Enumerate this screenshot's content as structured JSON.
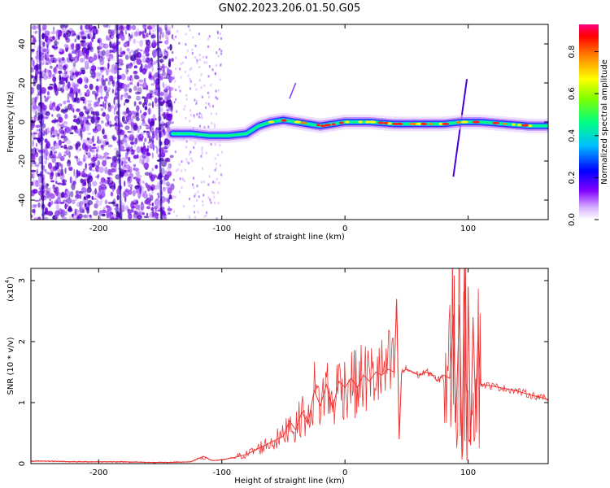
{
  "title": "GN02.2023.206.01.50.G05",
  "chart_data": [
    {
      "type": "heatmap",
      "xlabel": "Height of straight line (km)",
      "ylabel": "Frequency (Hz)",
      "xlim": [
        -255,
        165
      ],
      "ylim": [
        -50,
        50
      ],
      "xticks": [
        -200,
        -100,
        0,
        100
      ],
      "yticks": [
        -40,
        -20,
        0,
        20,
        40
      ],
      "ridge": {
        "x": [
          -140,
          -125,
          -110,
          -95,
          -80,
          -70,
          -60,
          -50,
          -40,
          -30,
          -20,
          -10,
          0,
          20,
          40,
          60,
          80,
          95,
          110,
          130,
          150,
          165
        ],
        "y": [
          -6,
          -6,
          -7,
          -7,
          -6,
          -2,
          0,
          1,
          0,
          -1,
          -2,
          -1,
          0,
          0,
          -1,
          -1,
          -1,
          0,
          0,
          -1,
          -2,
          -2
        ]
      },
      "colorbar": {
        "label": "Normalized spectral amplitude",
        "ticks": [
          "0.0",
          "0.2",
          "0.4",
          "0.6",
          "0.8"
        ],
        "colors": [
          "#ffffff",
          "#d9b3ff",
          "#8000ff",
          "#0000ff",
          "#00bfff",
          "#00ff80",
          "#80ff00",
          "#ffff00",
          "#ff8000",
          "#ff0000",
          "#ff0080"
        ]
      }
    },
    {
      "type": "line",
      "xlabel": "Height of straight line (km)",
      "ylabel": "SNR (10 * v/v)",
      "scale_label": "(x10",
      "scale_exp": "4",
      "xlim": [
        -255,
        165
      ],
      "ylim": [
        0,
        3.2
      ],
      "xticks": [
        -200,
        -100,
        0,
        100
      ],
      "yticks": [
        0,
        1,
        2,
        3
      ],
      "color": "#ee3333",
      "series": [
        {
          "x": [
            -255,
            -240,
            -220,
            -200,
            -180,
            -160,
            -140,
            -125,
            -115,
            -108,
            -100,
            -90,
            -80,
            -70,
            -60,
            -50,
            -45,
            -40,
            -35,
            -30,
            -25,
            -20,
            -15,
            -10,
            -5,
            0,
            5,
            10,
            15,
            20,
            25,
            30,
            35,
            40,
            42,
            44,
            46,
            50,
            55,
            60,
            65,
            70,
            75,
            80,
            85,
            88,
            90,
            93,
            95,
            97,
            99,
            100,
            102,
            104,
            106,
            108,
            110,
            120,
            130,
            140,
            150,
            160,
            165
          ],
          "y": [
            0.04,
            0.04,
            0.03,
            0.03,
            0.03,
            0.02,
            0.02,
            0.03,
            0.12,
            0.05,
            0.06,
            0.1,
            0.15,
            0.25,
            0.35,
            0.45,
            0.7,
            0.55,
            0.85,
            0.65,
            1.2,
            0.95,
            1.3,
            0.9,
            1.35,
            1.25,
            1.4,
            1.25,
            1.45,
            1.35,
            1.5,
            1.45,
            1.55,
            1.5,
            2.7,
            0.4,
            1.5,
            1.55,
            1.5,
            1.45,
            1.5,
            1.48,
            1.35,
            1.45,
            1.4,
            2.45,
            0.7,
            2.6,
            0.1,
            3.2,
            0.05,
            2.9,
            0.3,
            2.4,
            0.9,
            2.1,
            1.3,
            1.27,
            1.23,
            1.19,
            1.13,
            1.08,
            1.05
          ]
        }
      ]
    }
  ]
}
